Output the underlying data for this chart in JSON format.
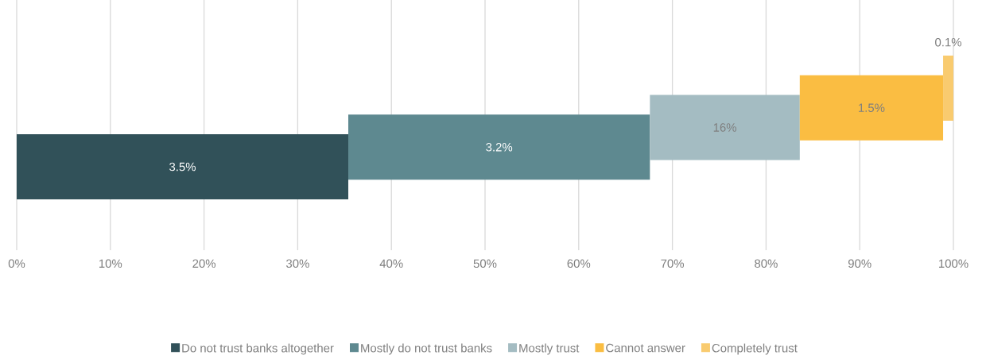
{
  "chart_data": {
    "type": "bar",
    "orientation": "horizontal",
    "stacked": true,
    "categories": [
      null
    ],
    "series": [
      {
        "name": "Do not trust banks altogether",
        "color": "#315159",
        "values": [
          35.4
        ]
      },
      {
        "name": "Mostly do not trust banks",
        "color": "#5e8990",
        "values": [
          32.2
        ]
      },
      {
        "name": "Mostly trust",
        "color": "#a4bcc2",
        "values": [
          16.0
        ]
      },
      {
        "name": "Cannot answer",
        "color": "#fabd42",
        "values": [
          15.3
        ]
      },
      {
        "name": "Completely trust",
        "color": "#f9cb6f",
        "values": [
          1.1
        ]
      }
    ],
    "annotations": [
      "3.5%",
      "3.2%",
      "16%",
      "1.5%",
      "0.1%"
    ],
    "xlim": [
      0,
      100
    ],
    "xticks": [
      {
        "value": 0,
        "label": "0%"
      },
      {
        "value": 10,
        "label": "10%"
      },
      {
        "value": 20,
        "label": "20%"
      },
      {
        "value": 30,
        "label": "30%"
      },
      {
        "value": 40,
        "label": "40%"
      },
      {
        "value": 50,
        "label": "50%"
      },
      {
        "value": 60,
        "label": "60%"
      },
      {
        "value": 70,
        "label": "70%"
      },
      {
        "value": 80,
        "label": "80%"
      },
      {
        "value": 90,
        "label": "90%"
      },
      {
        "value": 100,
        "label": "100%"
      }
    ],
    "grid": "x",
    "legend": "bottom"
  }
}
